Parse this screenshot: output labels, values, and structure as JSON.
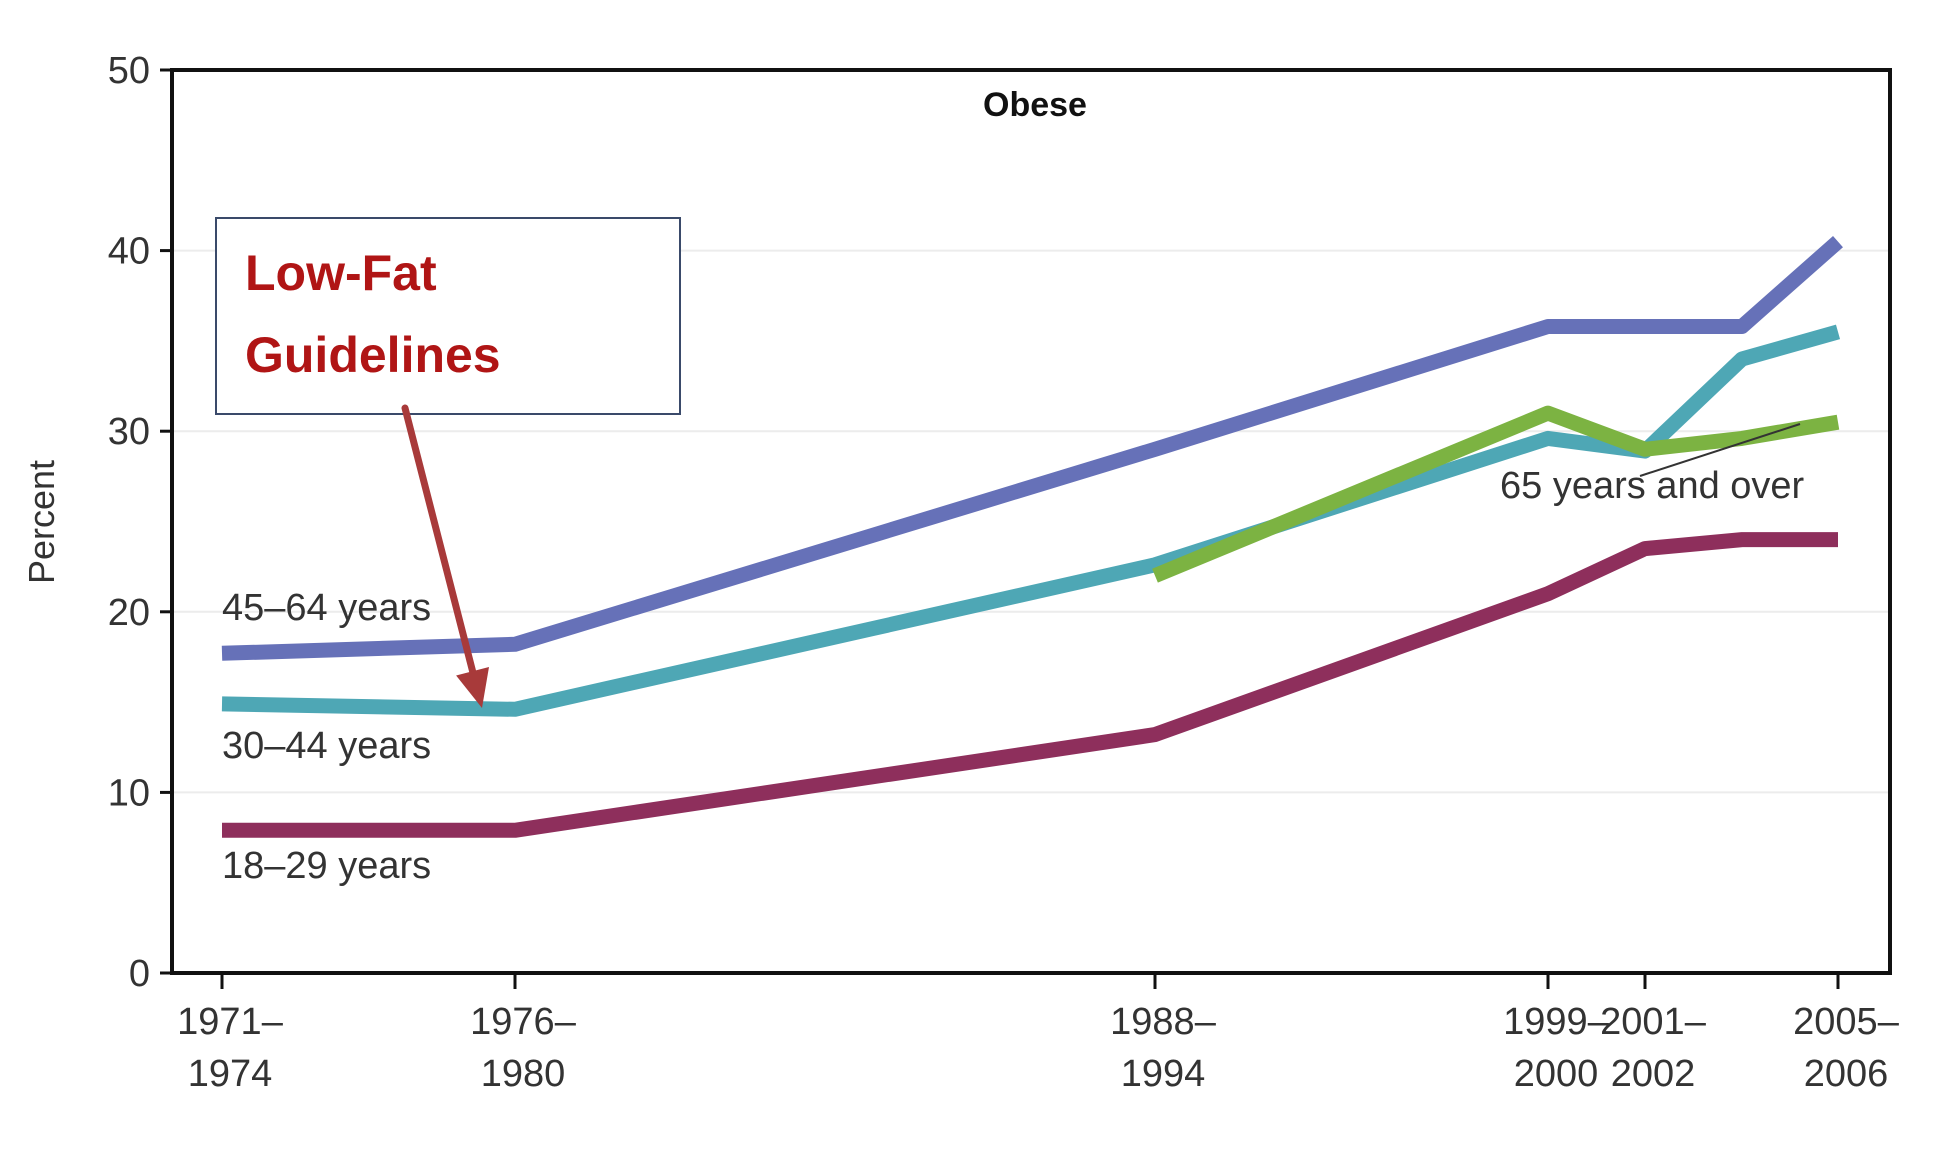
{
  "chart_data": {
    "type": "line",
    "title": "Obese",
    "ylabel": "Percent",
    "xlabel": "",
    "ylim": [
      0,
      50
    ],
    "yticks": [
      0,
      10,
      20,
      30,
      40,
      50
    ],
    "xlim": [
      1971,
      2006
    ],
    "x_ticks": [
      {
        "x": 1971,
        "label": [
          "1971–",
          "1974"
        ]
      },
      {
        "x": 1976,
        "label": [
          "1976–",
          "1980"
        ]
      },
      {
        "x": 1988,
        "label": [
          "1988–",
          "1994"
        ]
      },
      {
        "x": 1999,
        "label": [
          "1999–",
          "2000"
        ]
      },
      {
        "x": 2001,
        "label": [
          "2001–",
          "2002"
        ]
      },
      {
        "x": 2005,
        "label": [
          "2005–",
          "2006"
        ]
      }
    ],
    "grid": true,
    "series": [
      {
        "name": "45–64 years",
        "color": "#6671b8",
        "x": [
          1971,
          1976,
          1988,
          1999,
          2001,
          2003,
          2005
        ],
        "y": [
          17.7,
          18.2,
          29.0,
          35.8,
          35.8,
          35.8,
          40.5
        ]
      },
      {
        "name": "30–44 years",
        "color": "#4ea7b5",
        "x": [
          1971,
          1976,
          1988,
          1999,
          2001,
          2003,
          2005
        ],
        "y": [
          14.9,
          14.6,
          22.6,
          29.6,
          28.9,
          34.0,
          35.5
        ]
      },
      {
        "name": "65 years and over",
        "color": "#7cb342",
        "x": [
          1988,
          1999,
          2001,
          2003,
          2005
        ],
        "y": [
          22.0,
          31.0,
          29.0,
          29.6,
          30.5
        ]
      },
      {
        "name": "18–29 years",
        "color": "#8e2f5c",
        "x": [
          1971,
          1976,
          1988,
          1999,
          2001,
          2003,
          2005
        ],
        "y": [
          7.9,
          7.9,
          13.2,
          21.0,
          23.5,
          24.0,
          24.0
        ]
      }
    ],
    "annotation": {
      "text_lines": [
        "Low-Fat",
        "Guidelines"
      ],
      "color": "#b01515",
      "arrow_target": {
        "x": 1976,
        "y": 16.0
      }
    }
  }
}
